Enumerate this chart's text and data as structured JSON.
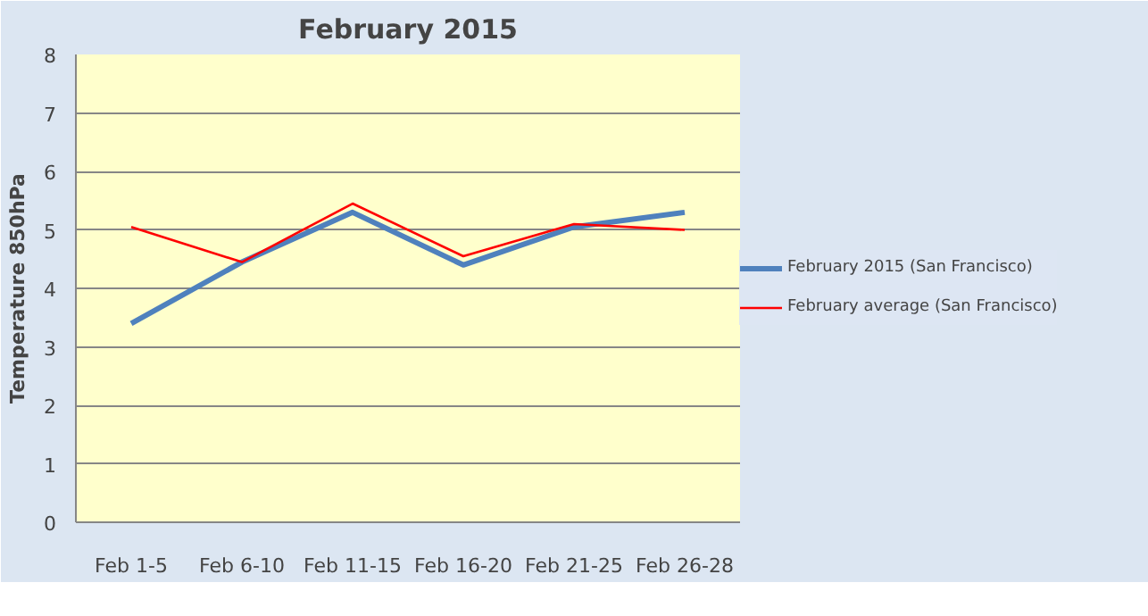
{
  "chart_data": {
    "type": "line",
    "title": "February 2015",
    "ylabel": "Temperature 850hPa",
    "categories": [
      "Feb 1-5",
      "Feb 6-10",
      "Feb 11-15",
      "Feb 16-20",
      "Feb 21-25",
      "Feb 26-28"
    ],
    "series": [
      {
        "name": "February 2015 (San Francisco)",
        "color": "#4f81bd",
        "values": [
          3.4,
          4.45,
          5.3,
          4.4,
          5.05,
          5.3
        ]
      },
      {
        "name": "February average (San Francisco)",
        "color": "#ff0000",
        "values": [
          5.05,
          4.45,
          5.45,
          4.55,
          5.1,
          5.0
        ]
      }
    ],
    "ylim": [
      0,
      8
    ],
    "yticks": [
      0,
      1,
      2,
      3,
      4,
      5,
      6,
      7,
      8
    ],
    "grid": "y",
    "legend": "right",
    "marker": "none"
  }
}
